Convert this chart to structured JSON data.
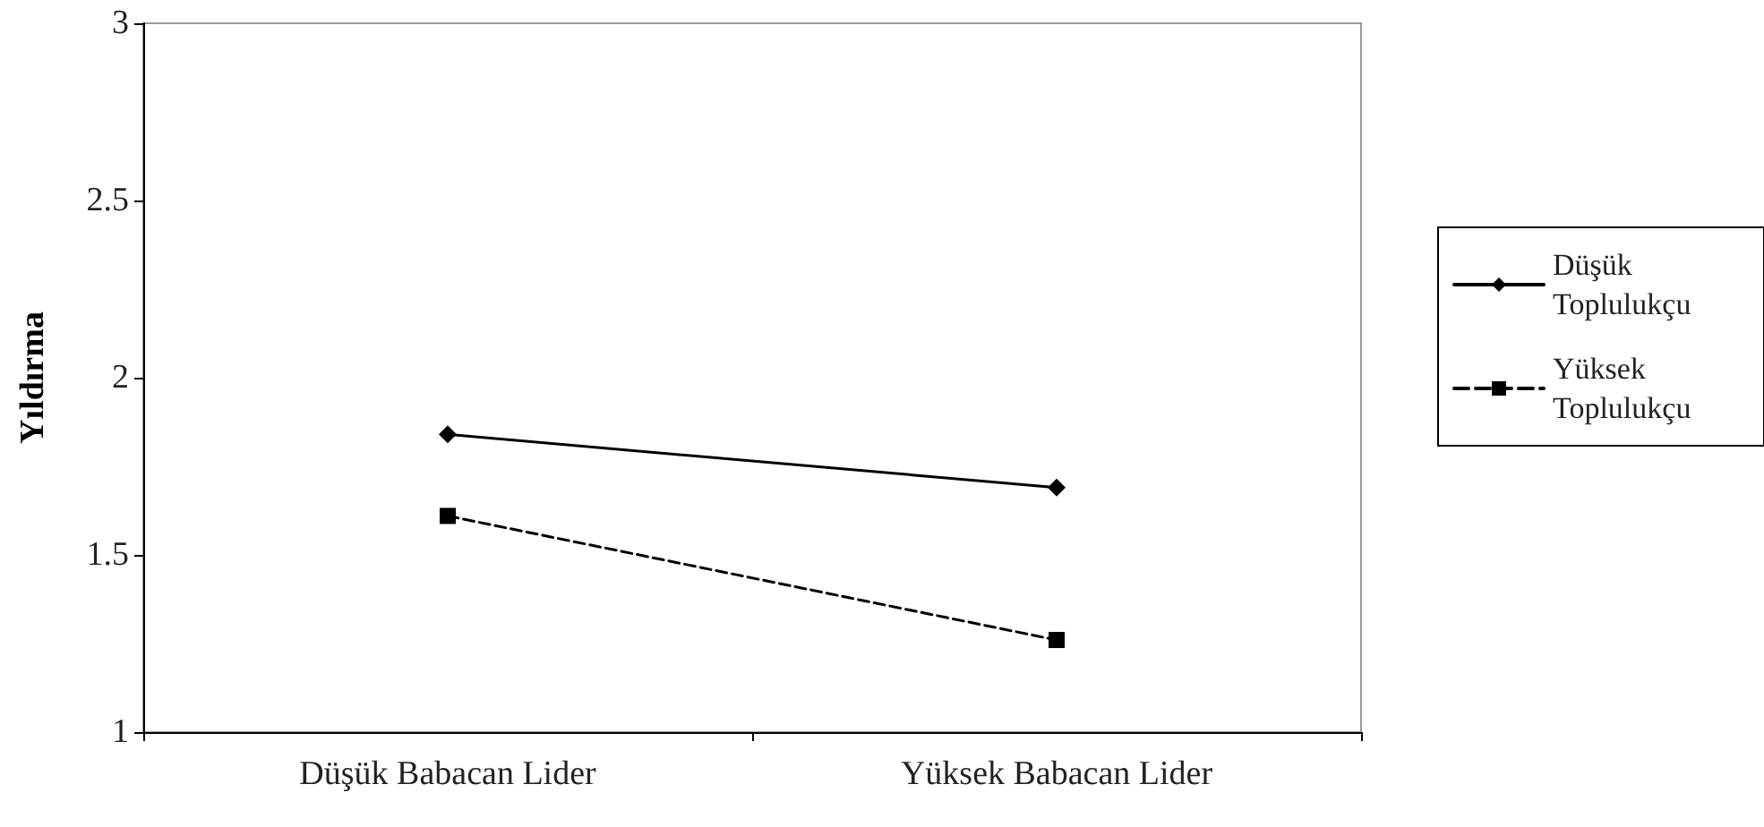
{
  "chart_data": {
    "type": "line",
    "ylabel": "Yıldırma",
    "categories": [
      "Düşük Babacan Lider",
      "Yüksek Babacan Lider"
    ],
    "series": [
      {
        "name": "Düşük Toplulukçu",
        "color": "#000000",
        "values": [
          1.84,
          1.69
        ],
        "marker": "diamond",
        "line_style": "solid"
      },
      {
        "name": "Yüksek Toplulukçu",
        "color": "#000000",
        "values": [
          1.61,
          1.26
        ],
        "marker": "square",
        "line_style": "dashed"
      }
    ],
    "ylim": [
      1,
      3
    ],
    "yticks": [
      1,
      1.5,
      2,
      2.5,
      3
    ],
    "grid": false,
    "legend": "right"
  }
}
